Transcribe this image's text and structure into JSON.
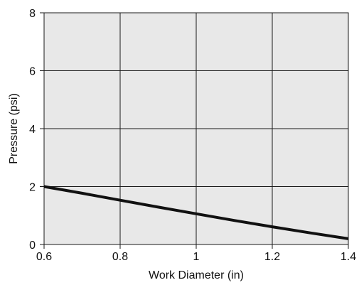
{
  "chart_data": {
    "type": "line",
    "title": "",
    "xlabel": "Work Diameter (in)",
    "ylabel": "Pressure (psi)",
    "xlim": [
      0.6,
      1.4
    ],
    "ylim": [
      0,
      8
    ],
    "x_ticks": [
      0.6,
      0.8,
      1.0,
      1.2,
      1.4
    ],
    "x_tick_labels": [
      "0.6",
      "0.8",
      "1",
      "1.2",
      "1.4"
    ],
    "y_ticks": [
      0,
      2,
      4,
      6,
      8
    ],
    "y_tick_labels": [
      "0",
      "2",
      "4",
      "6",
      "8"
    ],
    "grid": true,
    "legend": "none",
    "colors": {
      "plot_background": "#e8e8e8",
      "grid": "#1a1a1a",
      "line": "#111111"
    },
    "series": [
      {
        "x": [
          0.6,
          0.7,
          0.8,
          0.9,
          1.0,
          1.1,
          1.2,
          1.3,
          1.4
        ],
        "y": [
          2.0,
          1.77,
          1.53,
          1.29,
          1.06,
          0.83,
          0.61,
          0.4,
          0.2
        ]
      }
    ]
  }
}
